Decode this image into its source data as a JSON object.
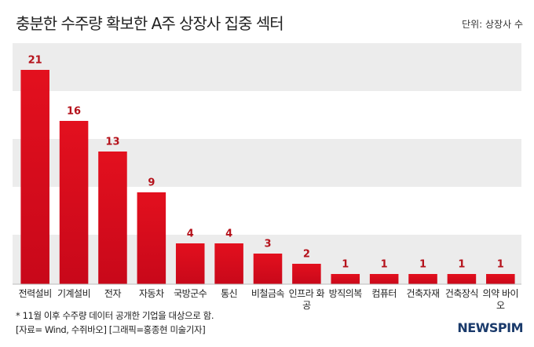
{
  "chart_data": {
    "type": "bar",
    "title": "충분한 수주량 확보한 A주 상장사 집중 섹터",
    "unit": "단위: 상장사 수",
    "categories": [
      "전력설비",
      "기계설비",
      "전자",
      "자동차",
      "국방군수",
      "통신",
      "비철금속",
      "인프라 화공",
      "방직의복",
      "컴퓨터",
      "건축자재",
      "건축장식",
      "의약 바이오"
    ],
    "values": [
      21,
      16,
      13,
      9,
      4,
      4,
      3,
      2,
      1,
      1,
      1,
      1,
      1
    ],
    "color": "#e3101e",
    "label_color": "#b5121b",
    "ylim": [
      0,
      24
    ],
    "notes": [
      "* 11월 이후 수주량 데이터 공개한 기업을 대상으로 함.",
      "[자료= Wind, 수쥐바오] [그래픽=홍종현 미술기자]"
    ],
    "logo": "NEWSPIM"
  }
}
